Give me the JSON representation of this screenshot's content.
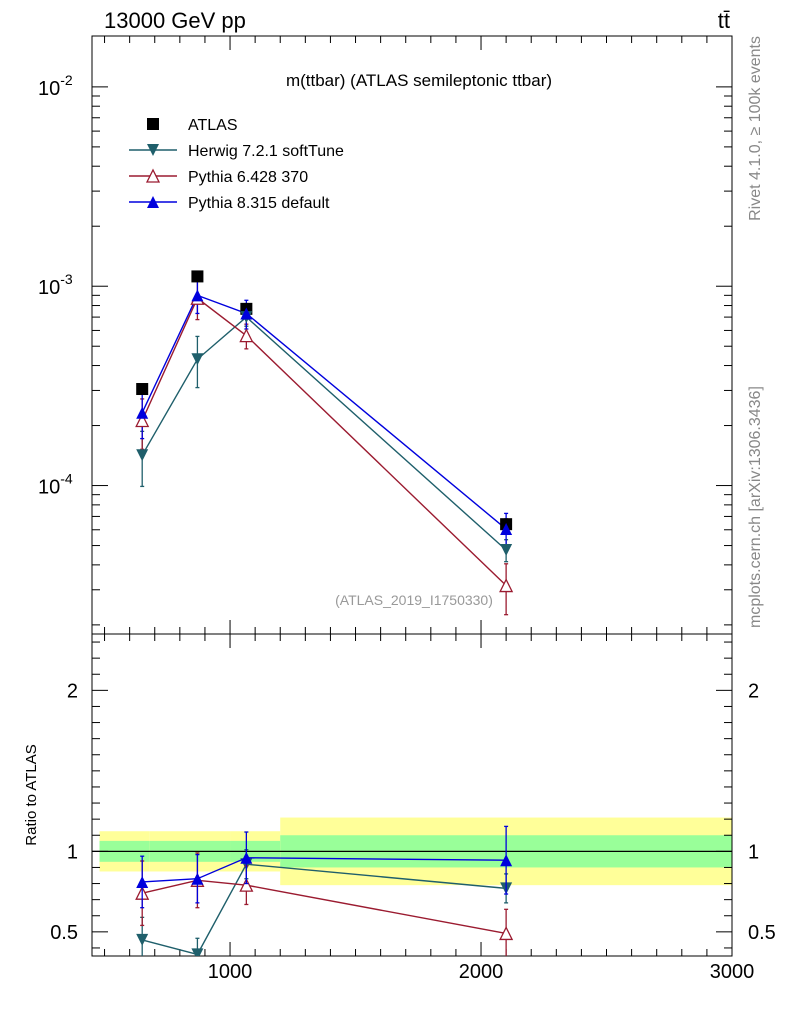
{
  "header": {
    "energy_label": "13000 GeV pp",
    "process_label": "tt̄"
  },
  "side_labels": {
    "rivet": "Rivet 4.1.0, ≥ 100k events",
    "mcplots": "mcplots.cern.ch [arXiv:1306.3436]"
  },
  "chart_data": [
    {
      "type": "scatter",
      "panel": "main",
      "title": "m(ttbar) (ATLAS semileptonic ttbar)",
      "watermark": "(ATLAS_2019_I1750330)",
      "yscale": "log",
      "xlim": [
        450,
        3000
      ],
      "ylim": [
        1.8e-05,
        0.018
      ],
      "ytick_labels": [
        {
          "base": "10",
          "exp": "-2",
          "value": 0.01
        },
        {
          "base": "10",
          "exp": "-3",
          "value": 0.001
        },
        {
          "base": "10",
          "exp": "-4",
          "value": 0.0001
        }
      ],
      "legend_position": "top-left",
      "series": [
        {
          "name": "ATLAS",
          "color": "#000000",
          "marker": "square-filled",
          "x": [
            650,
            870,
            1065,
            2100
          ],
          "y": [
            0.000305,
            0.00112,
            0.00077,
            6.4e-05
          ],
          "yerr": [
            1e-05,
            3e-05,
            2e-05,
            4e-06
          ]
        },
        {
          "name": "Herwig 7.2.1 softTune",
          "color": "#1f5f6b",
          "marker": "triangle-down-filled",
          "x": [
            650,
            870,
            1065,
            2100
          ],
          "y": [
            0.000142,
            0.00043,
            0.0007,
            4.75e-05
          ],
          "yerr_low": [
            4.3e-05,
            0.00012,
            7e-05,
            6e-06
          ],
          "yerr_high": [
            4.5e-05,
            0.00013,
            7e-05,
            6e-06
          ]
        },
        {
          "name": "Pythia 6.428 370",
          "color": "#9b1b30",
          "marker": "triangle-up-open",
          "x": [
            650,
            870,
            1065,
            2100
          ],
          "y": [
            0.000212,
            0.00087,
            0.000565,
            3.15e-05
          ],
          "yerr_low": [
            6e-05,
            0.00019,
            8e-05,
            9e-06
          ],
          "yerr_high": [
            6e-05,
            0.00019,
            8e-05,
            9e-06
          ]
        },
        {
          "name": "Pythia 8.315 default",
          "color": "#0000dd",
          "marker": "triangle-up-filled",
          "x": [
            650,
            870,
            1065,
            2100
          ],
          "y": [
            0.000232,
            0.0009,
            0.00073,
            6.05e-05
          ],
          "yerr_low": [
            6e-05,
            0.00017,
            0.00012,
            1.2e-05
          ],
          "yerr_high": [
            6e-05,
            0.00017,
            0.00012,
            1.2e-05
          ]
        }
      ]
    },
    {
      "type": "scatter",
      "panel": "ratio",
      "ylabel": "Ratio to ATLAS",
      "xlim": [
        450,
        3000
      ],
      "ylim": [
        0.35,
        2.35
      ],
      "xticks": [
        1000,
        2000,
        3000
      ],
      "xtick_labels": [
        "1000",
        "2000",
        "3000"
      ],
      "yticks": [
        0.5,
        1,
        2
      ],
      "ytick_labels": [
        "0.5",
        "1",
        "2"
      ],
      "reference_line": 1,
      "bands": [
        {
          "x0": 480,
          "x1": 680,
          "inner": [
            0.935,
            1.065
          ],
          "outer": [
            0.875,
            1.125
          ]
        },
        {
          "x0": 680,
          "x1": 1000,
          "inner": [
            0.935,
            1.065
          ],
          "outer": [
            0.875,
            1.125
          ]
        },
        {
          "x0": 1000,
          "x1": 1200,
          "inner": [
            0.935,
            1.065
          ],
          "outer": [
            0.875,
            1.125
          ]
        },
        {
          "x0": 1200,
          "x1": 3000,
          "inner": [
            0.9,
            1.1
          ],
          "outer": [
            0.79,
            1.21
          ]
        }
      ],
      "series": [
        {
          "name": "Herwig 7.2.1 softTune",
          "color": "#1f5f6b",
          "marker": "triangle-down-filled",
          "x": [
            650,
            870,
            1065,
            2100
          ],
          "y": [
            0.45,
            0.36,
            0.92,
            0.77
          ],
          "yerr_low": [
            0.14,
            0.1,
            0.09,
            0.09
          ],
          "yerr_high": [
            0.14,
            0.1,
            0.09,
            0.09
          ]
        },
        {
          "name": "Pythia 6.428 370",
          "color": "#9b1b30",
          "marker": "triangle-up-open",
          "x": [
            650,
            870,
            1065,
            2100
          ],
          "y": [
            0.74,
            0.82,
            0.79,
            0.49
          ],
          "yerr_low": [
            0.2,
            0.17,
            0.12,
            0.15
          ],
          "yerr_high": [
            0.2,
            0.17,
            0.12,
            0.15
          ]
        },
        {
          "name": "Pythia 8.315 default",
          "color": "#0000dd",
          "marker": "triangle-up-filled",
          "x": [
            650,
            870,
            1065,
            2100
          ],
          "y": [
            0.81,
            0.83,
            0.96,
            0.945
          ],
          "yerr_low": [
            0.16,
            0.15,
            0.16,
            0.21
          ],
          "yerr_high": [
            0.16,
            0.15,
            0.16,
            0.21
          ]
        }
      ]
    }
  ]
}
